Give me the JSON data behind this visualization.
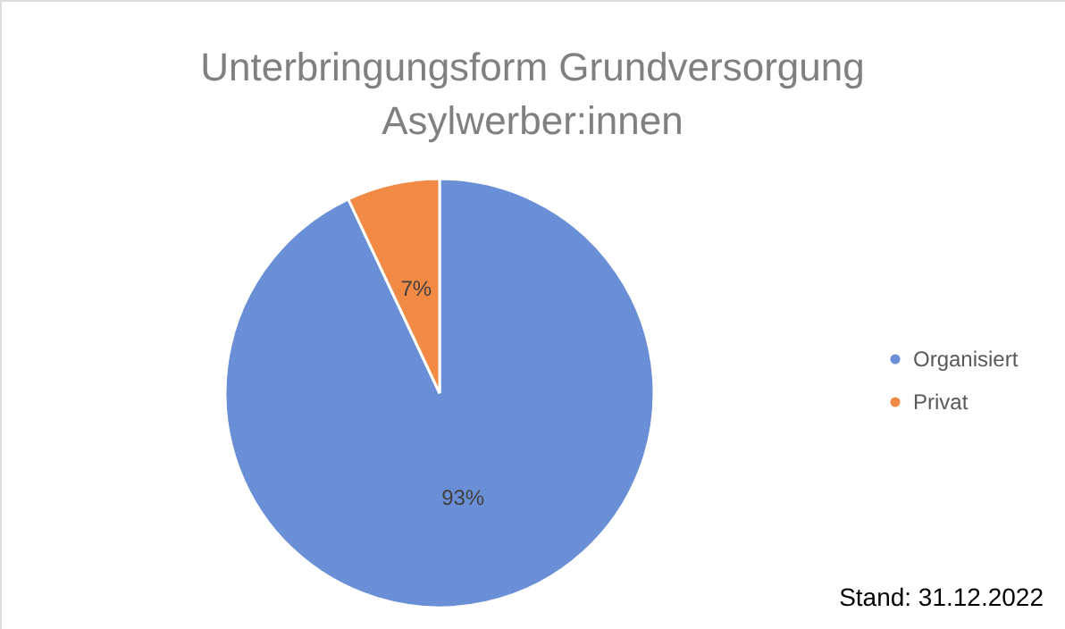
{
  "chart_data": {
    "type": "pie",
    "title": [
      "Unterbringungsform Grundversorgung",
      "Asylwerber:innen"
    ],
    "categories": [
      "Organisiert",
      "Privat"
    ],
    "values": [
      93,
      7
    ],
    "colors": [
      "#6a8fd6",
      "#f08a45"
    ],
    "value_labels": [
      "93%",
      "7%"
    ],
    "legend": "right",
    "annotations": [
      "Stand: 31.12.2022"
    ]
  }
}
